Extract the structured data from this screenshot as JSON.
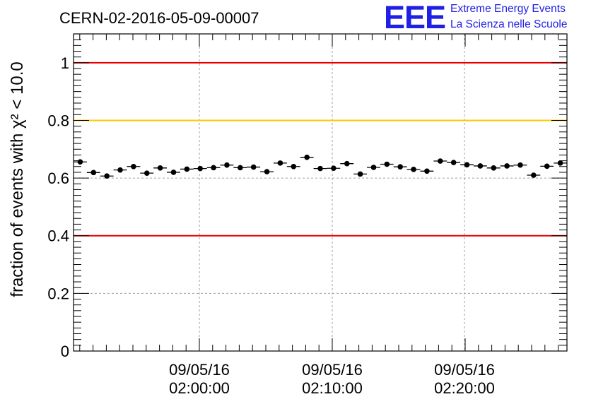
{
  "logo": {
    "mark": "EEE",
    "line1": "Extreme Energy Events",
    "line2": "La Scienza nelle Scuole",
    "color": "#1f1fe6"
  },
  "chart_data": {
    "type": "scatter",
    "title": "CERN-02-2016-05-09-00007",
    "ylabel": "fraction of events with χ² < 10.0",
    "xlabel": "",
    "ylim": [
      0,
      1.1
    ],
    "grid": true,
    "x_ticks": [
      {
        "date": "09/05/16",
        "time": "02:00:00"
      },
      {
        "date": "09/05/16",
        "time": "02:10:00"
      },
      {
        "date": "09/05/16",
        "time": "02:20:00"
      }
    ],
    "y_ticks": [
      "0",
      "0.2",
      "0.4",
      "0.6",
      "0.8",
      "1"
    ],
    "reference_lines": [
      {
        "value": 1.0,
        "color": "#e60000"
      },
      {
        "value": 0.8,
        "color": "#ffc800"
      },
      {
        "value": 0.4,
        "color": "#e60000"
      }
    ],
    "series": [
      {
        "marker_color": "#000000",
        "y": [
          0.656,
          0.619,
          0.607,
          0.628,
          0.64,
          0.617,
          0.635,
          0.62,
          0.631,
          0.633,
          0.636,
          0.645,
          0.636,
          0.638,
          0.622,
          0.652,
          0.64,
          0.672,
          0.633,
          0.634,
          0.65,
          0.614,
          0.637,
          0.648,
          0.639,
          0.63,
          0.624,
          0.659,
          0.654,
          0.646,
          0.642,
          0.635,
          0.642,
          0.645,
          0.61,
          0.641,
          0.652
        ],
        "y_err": 0.008
      }
    ]
  }
}
